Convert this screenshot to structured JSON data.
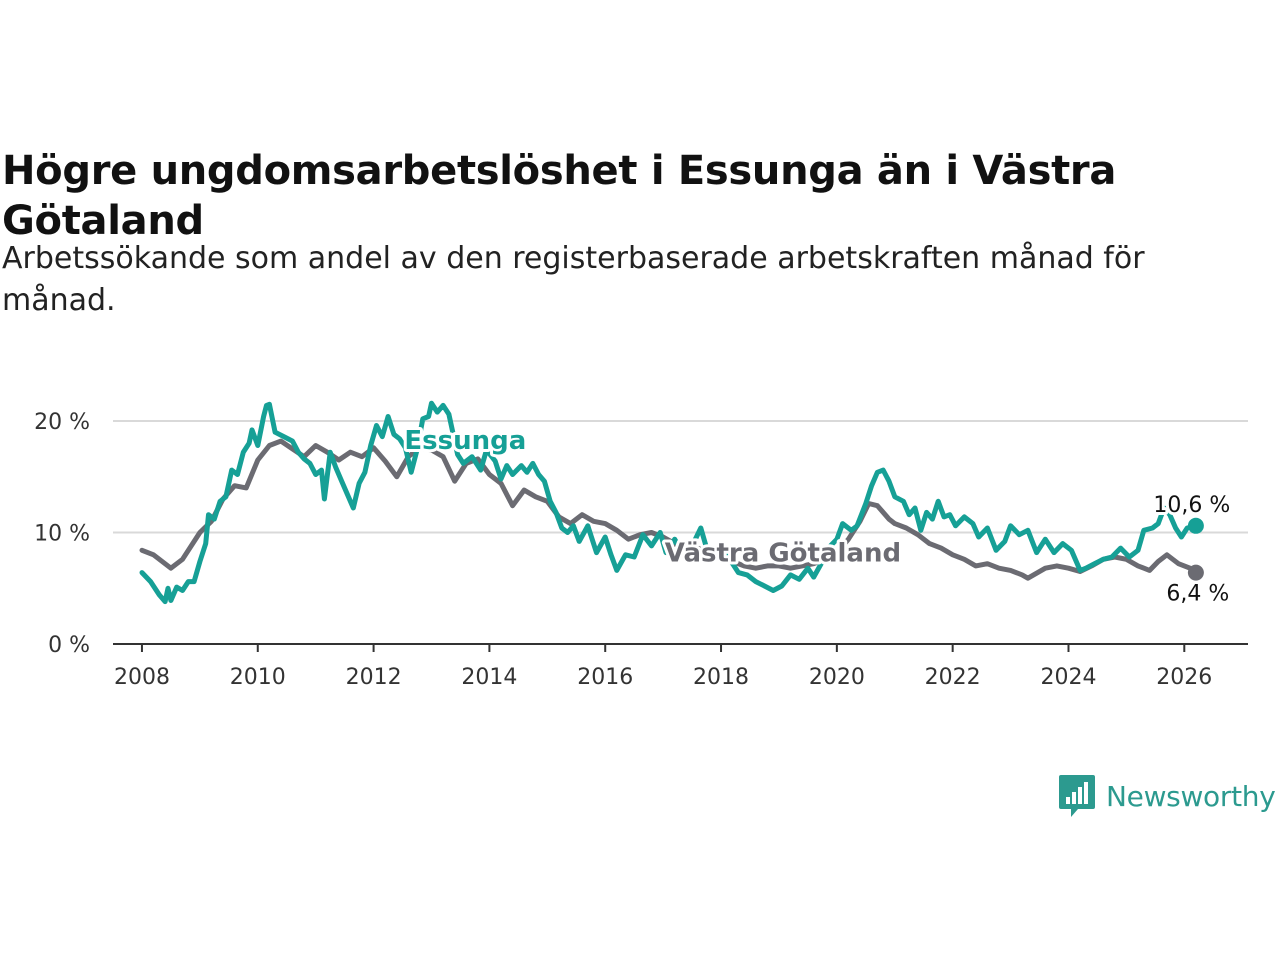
{
  "title": "Högre ungdomsarbetslöshet i Essunga än i Västra Götaland",
  "subtitle": "Arbetssökande som andel av den registerbaserade arbetskraften månad för månad.",
  "brand": {
    "name": "Newsworthy",
    "color": "#2c9a8f"
  },
  "chart_data": {
    "type": "line",
    "title": "Högre ungdomsarbetslöshet i Essunga än i Västra Götaland",
    "xlabel": "",
    "ylabel": "",
    "xlim": [
      2007.5,
      2027.1
    ],
    "ylim": [
      0,
      20
    ],
    "yticks": [
      0,
      10,
      20
    ],
    "ytick_labels": [
      "0 %",
      "10 %",
      "20 %"
    ],
    "xticks": [
      2008,
      2010,
      2012,
      2014,
      2016,
      2018,
      2020,
      2022,
      2024,
      2026
    ],
    "xtick_labels": [
      "2008",
      "2010",
      "2012",
      "2014",
      "2016",
      "2018",
      "2020",
      "2022",
      "2024",
      "2026"
    ],
    "grid": true,
    "legend": "inline labels",
    "series": [
      {
        "name": "Västra Götaland",
        "label": "Västra Götaland",
        "color": "#6b6b72",
        "end_label": "6,4 %",
        "points": [
          [
            2008.0,
            8.4
          ],
          [
            2008.2,
            8.0
          ],
          [
            2008.5,
            6.8
          ],
          [
            2008.7,
            7.6
          ],
          [
            2009.0,
            10.0
          ],
          [
            2009.2,
            11.0
          ],
          [
            2009.4,
            13.0
          ],
          [
            2009.6,
            14.2
          ],
          [
            2009.8,
            14.0
          ],
          [
            2010.0,
            16.5
          ],
          [
            2010.2,
            17.8
          ],
          [
            2010.4,
            18.2
          ],
          [
            2010.6,
            17.5
          ],
          [
            2010.8,
            16.8
          ],
          [
            2011.0,
            17.8
          ],
          [
            2011.2,
            17.2
          ],
          [
            2011.4,
            16.5
          ],
          [
            2011.6,
            17.2
          ],
          [
            2011.8,
            16.8
          ],
          [
            2012.0,
            17.6
          ],
          [
            2012.2,
            16.4
          ],
          [
            2012.4,
            15.0
          ],
          [
            2012.6,
            16.8
          ],
          [
            2012.8,
            17.6
          ],
          [
            2013.0,
            17.4
          ],
          [
            2013.2,
            16.8
          ],
          [
            2013.4,
            14.6
          ],
          [
            2013.6,
            16.2
          ],
          [
            2013.8,
            16.6
          ],
          [
            2014.0,
            15.2
          ],
          [
            2014.2,
            14.4
          ],
          [
            2014.4,
            12.4
          ],
          [
            2014.6,
            13.8
          ],
          [
            2014.8,
            13.2
          ],
          [
            2015.0,
            12.8
          ],
          [
            2015.2,
            11.4
          ],
          [
            2015.4,
            10.8
          ],
          [
            2015.6,
            11.6
          ],
          [
            2015.8,
            11.0
          ],
          [
            2016.0,
            10.8
          ],
          [
            2016.2,
            10.2
          ],
          [
            2016.4,
            9.4
          ],
          [
            2016.6,
            9.8
          ],
          [
            2016.8,
            10.0
          ],
          [
            2017.0,
            9.6
          ],
          [
            2017.2,
            9.0
          ],
          [
            2017.4,
            8.2
          ],
          [
            2017.6,
            8.6
          ],
          [
            2017.8,
            8.0
          ],
          [
            2018.0,
            7.8
          ],
          [
            2018.2,
            7.4
          ],
          [
            2018.4,
            7.0
          ],
          [
            2018.6,
            6.8
          ],
          [
            2018.8,
            7.0
          ],
          [
            2019.0,
            7.0
          ],
          [
            2019.2,
            6.8
          ],
          [
            2019.4,
            7.0
          ],
          [
            2019.6,
            7.2
          ],
          [
            2019.8,
            7.6
          ],
          [
            2020.0,
            8.2
          ],
          [
            2020.2,
            9.4
          ],
          [
            2020.4,
            11.0
          ],
          [
            2020.55,
            12.6
          ],
          [
            2020.7,
            12.4
          ],
          [
            2020.9,
            11.2
          ],
          [
            2021.0,
            10.8
          ],
          [
            2021.2,
            10.4
          ],
          [
            2021.4,
            9.8
          ],
          [
            2021.6,
            9.0
          ],
          [
            2021.8,
            8.6
          ],
          [
            2022.0,
            8.0
          ],
          [
            2022.2,
            7.6
          ],
          [
            2022.4,
            7.0
          ],
          [
            2022.6,
            7.2
          ],
          [
            2022.8,
            6.8
          ],
          [
            2023.0,
            6.6
          ],
          [
            2023.2,
            6.2
          ],
          [
            2023.3,
            5.9
          ],
          [
            2023.6,
            6.8
          ],
          [
            2023.8,
            7.0
          ],
          [
            2024.0,
            6.8
          ],
          [
            2024.2,
            6.5
          ],
          [
            2024.4,
            7.0
          ],
          [
            2024.6,
            7.6
          ],
          [
            2024.8,
            7.8
          ],
          [
            2025.0,
            7.6
          ],
          [
            2025.2,
            7.0
          ],
          [
            2025.4,
            6.6
          ],
          [
            2025.55,
            7.4
          ],
          [
            2025.7,
            8.0
          ],
          [
            2025.9,
            7.2
          ],
          [
            2026.1,
            6.8
          ],
          [
            2026.2,
            6.4
          ]
        ]
      },
      {
        "name": "Essunga",
        "label": "Essunga",
        "color": "#16a096",
        "end_label": "10,6 %",
        "points": [
          [
            2008.0,
            6.4
          ],
          [
            2008.15,
            5.6
          ],
          [
            2008.3,
            4.4
          ],
          [
            2008.4,
            3.8
          ],
          [
            2008.45,
            5.0
          ],
          [
            2008.5,
            3.9
          ],
          [
            2008.6,
            5.1
          ],
          [
            2008.7,
            4.8
          ],
          [
            2008.8,
            5.6
          ],
          [
            2008.9,
            5.6
          ],
          [
            2009.0,
            7.4
          ],
          [
            2009.1,
            9.0
          ],
          [
            2009.15,
            11.6
          ],
          [
            2009.25,
            11.2
          ],
          [
            2009.35,
            12.8
          ],
          [
            2009.45,
            13.2
          ],
          [
            2009.55,
            15.6
          ],
          [
            2009.65,
            15.2
          ],
          [
            2009.75,
            17.2
          ],
          [
            2009.85,
            18.0
          ],
          [
            2009.9,
            19.2
          ],
          [
            2010.0,
            17.8
          ],
          [
            2010.1,
            20.4
          ],
          [
            2010.15,
            21.4
          ],
          [
            2010.2,
            21.5
          ],
          [
            2010.3,
            19.0
          ],
          [
            2010.45,
            18.6
          ],
          [
            2010.6,
            18.2
          ],
          [
            2010.7,
            17.2
          ],
          [
            2010.8,
            16.6
          ],
          [
            2010.9,
            16.2
          ],
          [
            2011.0,
            15.2
          ],
          [
            2011.1,
            15.6
          ],
          [
            2011.15,
            13.0
          ],
          [
            2011.25,
            17.2
          ],
          [
            2011.35,
            15.8
          ],
          [
            2011.45,
            14.6
          ],
          [
            2011.55,
            13.4
          ],
          [
            2011.65,
            12.2
          ],
          [
            2011.75,
            14.4
          ],
          [
            2011.85,
            15.4
          ],
          [
            2011.95,
            17.8
          ],
          [
            2012.05,
            19.6
          ],
          [
            2012.15,
            18.6
          ],
          [
            2012.25,
            20.4
          ],
          [
            2012.35,
            18.8
          ],
          [
            2012.45,
            18.4
          ],
          [
            2012.55,
            17.6
          ],
          [
            2012.65,
            15.4
          ],
          [
            2012.75,
            17.4
          ],
          [
            2012.85,
            20.2
          ],
          [
            2012.95,
            20.4
          ],
          [
            2013.0,
            21.6
          ],
          [
            2013.1,
            20.8
          ],
          [
            2013.2,
            21.4
          ],
          [
            2013.3,
            20.6
          ],
          [
            2013.45,
            17.0
          ],
          [
            2013.55,
            16.2
          ],
          [
            2013.7,
            16.8
          ],
          [
            2013.85,
            15.6
          ],
          [
            2013.95,
            17.4
          ],
          [
            2014.1,
            16.4
          ],
          [
            2014.2,
            14.8
          ],
          [
            2014.3,
            16.0
          ],
          [
            2014.4,
            15.2
          ],
          [
            2014.55,
            16.0
          ],
          [
            2014.65,
            15.4
          ],
          [
            2014.75,
            16.2
          ],
          [
            2014.85,
            15.2
          ],
          [
            2014.95,
            14.6
          ],
          [
            2015.05,
            12.8
          ],
          [
            2015.15,
            11.8
          ],
          [
            2015.25,
            10.4
          ],
          [
            2015.35,
            10.0
          ],
          [
            2015.45,
            10.6
          ],
          [
            2015.55,
            9.2
          ],
          [
            2015.7,
            10.6
          ],
          [
            2015.85,
            8.2
          ],
          [
            2016.0,
            9.6
          ],
          [
            2016.1,
            8.0
          ],
          [
            2016.2,
            6.6
          ],
          [
            2016.35,
            8.0
          ],
          [
            2016.5,
            7.8
          ],
          [
            2016.65,
            9.8
          ],
          [
            2016.8,
            8.8
          ],
          [
            2016.95,
            10.0
          ],
          [
            2017.05,
            8.2
          ],
          [
            2017.2,
            9.4
          ],
          [
            2017.35,
            8.0
          ],
          [
            2017.5,
            8.8
          ],
          [
            2017.65,
            10.4
          ],
          [
            2017.75,
            8.6
          ],
          [
            2017.9,
            8.0
          ],
          [
            2018.0,
            8.4
          ],
          [
            2018.15,
            7.6
          ],
          [
            2018.3,
            6.4
          ],
          [
            2018.45,
            6.2
          ],
          [
            2018.6,
            5.6
          ],
          [
            2018.75,
            5.2
          ],
          [
            2018.9,
            4.8
          ],
          [
            2019.05,
            5.2
          ],
          [
            2019.2,
            6.2
          ],
          [
            2019.35,
            5.8
          ],
          [
            2019.5,
            6.8
          ],
          [
            2019.6,
            6.0
          ],
          [
            2019.75,
            7.4
          ],
          [
            2019.85,
            8.6
          ],
          [
            2020.0,
            9.4
          ],
          [
            2020.1,
            10.8
          ],
          [
            2020.25,
            10.2
          ],
          [
            2020.35,
            10.6
          ],
          [
            2020.5,
            12.6
          ],
          [
            2020.6,
            14.2
          ],
          [
            2020.7,
            15.4
          ],
          [
            2020.8,
            15.6
          ],
          [
            2020.9,
            14.6
          ],
          [
            2021.0,
            13.2
          ],
          [
            2021.15,
            12.8
          ],
          [
            2021.25,
            11.6
          ],
          [
            2021.35,
            12.2
          ],
          [
            2021.45,
            10.2
          ],
          [
            2021.55,
            11.8
          ],
          [
            2021.65,
            11.2
          ],
          [
            2021.75,
            12.8
          ],
          [
            2021.85,
            11.4
          ],
          [
            2021.95,
            11.6
          ],
          [
            2022.05,
            10.6
          ],
          [
            2022.2,
            11.4
          ],
          [
            2022.35,
            10.8
          ],
          [
            2022.45,
            9.6
          ],
          [
            2022.6,
            10.4
          ],
          [
            2022.75,
            8.4
          ],
          [
            2022.9,
            9.2
          ],
          [
            2023.0,
            10.6
          ],
          [
            2023.15,
            9.8
          ],
          [
            2023.3,
            10.2
          ],
          [
            2023.45,
            8.2
          ],
          [
            2023.6,
            9.4
          ],
          [
            2023.75,
            8.2
          ],
          [
            2023.9,
            9.0
          ],
          [
            2024.05,
            8.4
          ],
          [
            2024.2,
            6.6
          ],
          [
            2024.3,
            6.8
          ],
          [
            2024.45,
            7.2
          ],
          [
            2024.6,
            7.6
          ],
          [
            2024.75,
            7.8
          ],
          [
            2024.9,
            8.6
          ],
          [
            2025.05,
            7.8
          ],
          [
            2025.2,
            8.4
          ],
          [
            2025.3,
            10.2
          ],
          [
            2025.45,
            10.4
          ],
          [
            2025.55,
            10.8
          ],
          [
            2025.65,
            12.2
          ],
          [
            2025.75,
            11.6
          ],
          [
            2025.85,
            10.4
          ],
          [
            2025.95,
            9.6
          ],
          [
            2026.05,
            10.4
          ],
          [
            2026.2,
            10.6
          ]
        ]
      }
    ]
  }
}
